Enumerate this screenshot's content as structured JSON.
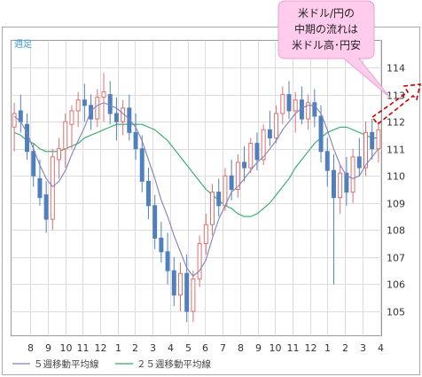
{
  "chart_data": {
    "type": "candlestick",
    "period_label": "週足",
    "y_ticks": [
      105,
      106,
      107,
      108,
      109,
      110,
      111,
      112,
      113,
      114
    ],
    "ylim": [
      104.1,
      115.0
    ],
    "x_ticks": [
      "8",
      "9",
      "10",
      "11",
      "12",
      "1",
      "2",
      "3",
      "4",
      "5",
      "6",
      "7",
      "8",
      "9",
      "10",
      "11",
      "12",
      "1",
      "2",
      "3",
      "4"
    ],
    "grid": true,
    "colors": {
      "up": "#e07070",
      "down": "#4f80bd",
      "ma5": "#8080c0",
      "ma25": "#33aa66",
      "callout_fill": "#ffccee",
      "callout_stroke": "#e8a0cc",
      "arrow": "#cc0000"
    },
    "callout": {
      "lines": [
        "米ドル/円の",
        "中期の流れは",
        "米ドル高･円安"
      ]
    },
    "legend": [
      {
        "name": "５週移動平均線",
        "color": "#8080c0"
      },
      {
        "name": "２５週移動平均線",
        "color": "#33aa66"
      }
    ],
    "candles_ohlc": [
      [
        111.8,
        112.7,
        110.9,
        112.3
      ],
      [
        112.4,
        113.0,
        111.6,
        112.0
      ],
      [
        111.9,
        112.3,
        110.6,
        110.9
      ],
      [
        110.9,
        111.2,
        109.6,
        110.0
      ],
      [
        109.9,
        110.6,
        108.9,
        109.2
      ],
      [
        109.3,
        109.8,
        107.9,
        108.4
      ],
      [
        108.4,
        111.0,
        108.0,
        110.7
      ],
      [
        110.6,
        111.4,
        109.9,
        111.0
      ],
      [
        111.0,
        112.3,
        110.3,
        112.0
      ],
      [
        111.9,
        112.6,
        111.0,
        112.4
      ],
      [
        112.4,
        113.1,
        111.8,
        112.8
      ],
      [
        112.8,
        113.4,
        112.0,
        112.6
      ],
      [
        112.6,
        113.0,
        111.7,
        112.1
      ],
      [
        112.1,
        113.2,
        111.8,
        112.9
      ],
      [
        112.9,
        113.8,
        112.0,
        113.1
      ],
      [
        113.0,
        113.5,
        111.9,
        112.3
      ],
      [
        112.3,
        112.9,
        111.3,
        112.0
      ],
      [
        112.0,
        112.8,
        111.5,
        112.5
      ],
      [
        112.5,
        113.0,
        111.3,
        111.6
      ],
      [
        111.6,
        112.3,
        110.6,
        111.0
      ],
      [
        111.0,
        111.5,
        109.4,
        109.8
      ],
      [
        109.8,
        110.3,
        108.4,
        108.9
      ],
      [
        108.9,
        109.3,
        107.3,
        107.7
      ],
      [
        107.7,
        108.3,
        106.8,
        107.2
      ],
      [
        107.2,
        107.9,
        106.0,
        106.5
      ],
      [
        106.5,
        107.0,
        105.2,
        105.6
      ],
      [
        105.6,
        106.8,
        105.0,
        106.4
      ],
      [
        106.4,
        107.1,
        104.6,
        105.0
      ],
      [
        105.0,
        106.5,
        104.6,
        106.2
      ],
      [
        106.2,
        107.8,
        105.9,
        107.5
      ],
      [
        107.5,
        108.6,
        107.1,
        108.2
      ],
      [
        108.2,
        109.7,
        107.8,
        109.4
      ],
      [
        109.4,
        109.9,
        108.5,
        108.9
      ],
      [
        108.9,
        110.3,
        108.7,
        110.0
      ],
      [
        110.0,
        110.6,
        109.1,
        109.5
      ],
      [
        109.5,
        110.8,
        109.2,
        110.5
      ],
      [
        110.5,
        111.1,
        109.8,
        110.3
      ],
      [
        110.3,
        111.4,
        110.1,
        111.2
      ],
      [
        111.2,
        111.6,
        110.2,
        110.6
      ],
      [
        110.6,
        111.9,
        110.4,
        111.7
      ],
      [
        111.7,
        112.4,
        111.1,
        111.4
      ],
      [
        111.4,
        112.6,
        111.2,
        112.3
      ],
      [
        112.3,
        113.3,
        111.9,
        113.0
      ],
      [
        113.0,
        113.5,
        112.1,
        112.4
      ],
      [
        112.4,
        113.1,
        111.6,
        112.8
      ],
      [
        112.8,
        113.3,
        111.9,
        112.1
      ],
      [
        112.1,
        113.0,
        111.7,
        112.7
      ],
      [
        112.7,
        113.2,
        111.8,
        112.2
      ],
      [
        112.2,
        112.6,
        110.5,
        110.9
      ],
      [
        110.9,
        111.4,
        109.6,
        110.2
      ],
      [
        110.2,
        110.8,
        106.0,
        109.2
      ],
      [
        109.2,
        110.4,
        108.6,
        110.1
      ],
      [
        110.1,
        110.7,
        108.9,
        109.4
      ],
      [
        109.4,
        111.0,
        109.0,
        110.7
      ],
      [
        110.7,
        111.4,
        110.0,
        110.3
      ],
      [
        110.3,
        112.0,
        110.0,
        111.6
      ],
      [
        111.6,
        112.1,
        110.6,
        111.0
      ],
      [
        111.0,
        112.0,
        110.5,
        111.7
      ]
    ],
    "ma5": [
      112.2,
      112.0,
      111.6,
      111.0,
      110.4,
      109.9,
      109.6,
      109.8,
      110.2,
      110.8,
      111.3,
      111.8,
      112.4,
      112.6,
      112.7,
      112.6,
      112.5,
      112.3,
      112.1,
      111.8,
      111.3,
      110.6,
      109.9,
      109.1,
      108.5,
      107.8,
      107.2,
      106.6,
      106.3,
      106.5,
      106.9,
      107.7,
      108.4,
      108.9,
      109.4,
      109.6,
      109.9,
      110.2,
      110.5,
      110.7,
      111.0,
      111.3,
      111.7,
      112.0,
      112.3,
      112.5,
      112.6,
      112.6,
      112.3,
      111.7,
      111.0,
      110.4,
      110.0,
      109.9,
      110.0,
      110.4,
      110.7,
      111.0
    ],
    "ma25": [
      111.6,
      111.5,
      111.3,
      111.2,
      111.0,
      110.9,
      110.9,
      110.9,
      111.0,
      111.1,
      111.2,
      111.4,
      111.5,
      111.6,
      111.7,
      111.8,
      111.9,
      111.9,
      111.9,
      111.9,
      111.9,
      111.8,
      111.7,
      111.5,
      111.3,
      111.0,
      110.7,
      110.4,
      110.1,
      109.8,
      109.5,
      109.3,
      109.1,
      108.9,
      108.8,
      108.6,
      108.5,
      108.5,
      108.6,
      108.8,
      109.0,
      109.3,
      109.6,
      109.9,
      110.3,
      110.6,
      110.9,
      111.2,
      111.4,
      111.6,
      111.7,
      111.8,
      111.8,
      111.7,
      111.6,
      111.5,
      111.4,
      111.4
    ]
  }
}
